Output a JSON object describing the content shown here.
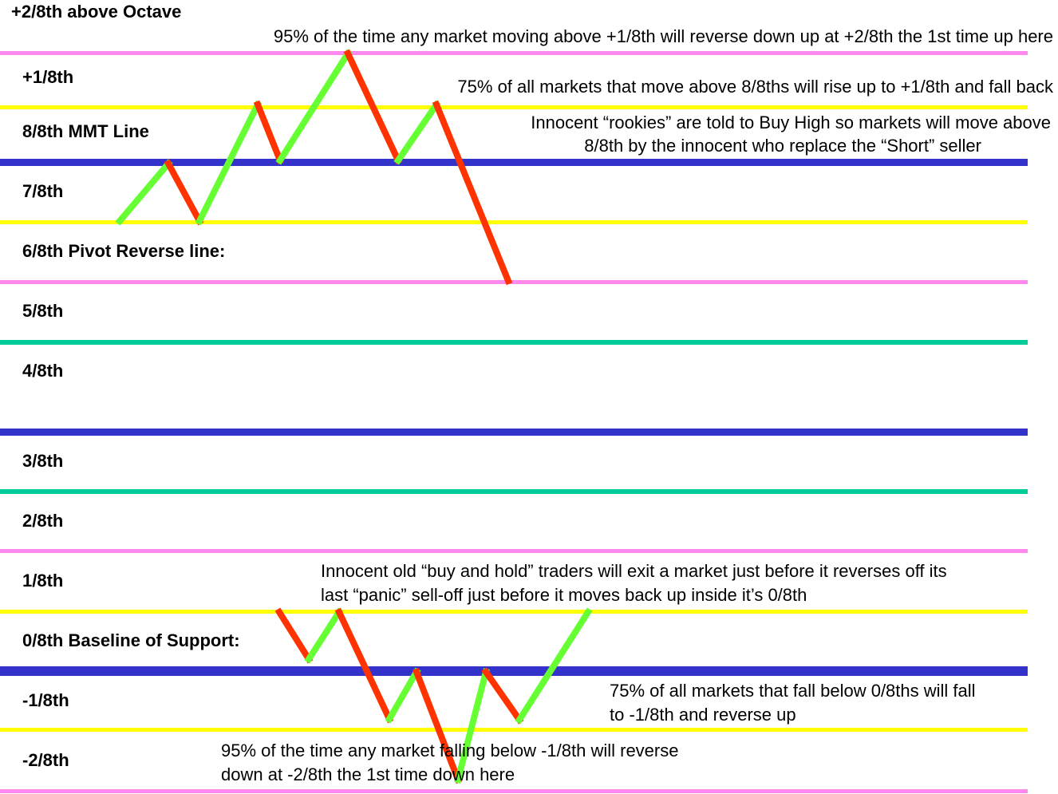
{
  "colors": {
    "pink": "#ff88ee",
    "yellow": "#ffff00",
    "blue": "#3333cc",
    "teal": "#00cc99",
    "up_stroke": "#66ff33",
    "down_stroke": "#ff3300"
  },
  "levels": [
    {
      "id": "plus-2",
      "label": "+2/8th above Octave",
      "line": "pink"
    },
    {
      "id": "plus-1",
      "label": "+1/8th",
      "line": "yellow"
    },
    {
      "id": "8",
      "label": "8/8th MMT Line",
      "line": "blue"
    },
    {
      "id": "7",
      "label": "7/8th",
      "line": "yellow"
    },
    {
      "id": "6",
      "label": "6/8th Pivot Reverse line:",
      "line": "pink"
    },
    {
      "id": "5",
      "label": "5/8th",
      "line": "teal"
    },
    {
      "id": "4",
      "label": "4/8th",
      "line": "blue"
    },
    {
      "id": "3",
      "label": "3/8th",
      "line": "teal"
    },
    {
      "id": "2",
      "label": "2/8th",
      "line": "pink"
    },
    {
      "id": "1",
      "label": "1/8th",
      "line": "yellow"
    },
    {
      "id": "0",
      "label": "0/8th Baseline of Support:",
      "line": "blue"
    },
    {
      "id": "minus-1",
      "label": "-1/8th",
      "line": "yellow"
    },
    {
      "id": "minus-2",
      "label": "-2/8th",
      "line": "pink"
    }
  ],
  "annotations": {
    "plus2_reversal": "95% of the time any market moving above +1/8th will reverse down up at +2/8th the 1st time up here",
    "above_8": "75% of all markets that move above 8/8ths will rise up to +1/8th and fall back",
    "rookies": [
      "Innocent “rookies” are told to Buy High so markets will move above",
      "8/8th by the innocent who replace the “Short” seller"
    ],
    "buy_and_hold": [
      "Innocent old “buy and hold” traders will exit a market just before it reverses off its",
      "last “panic” sell-off just before it moves back up inside it’s 0/8th"
    ],
    "below_0": [
      "75% of all markets that fall below 0/8ths will fall",
      "to -1/8th and reverse up"
    ],
    "minus2_reversal": [
      "95% of the time any market falling below -1/8th will reverse",
      "down at -2/8th the 1st time down here"
    ]
  }
}
